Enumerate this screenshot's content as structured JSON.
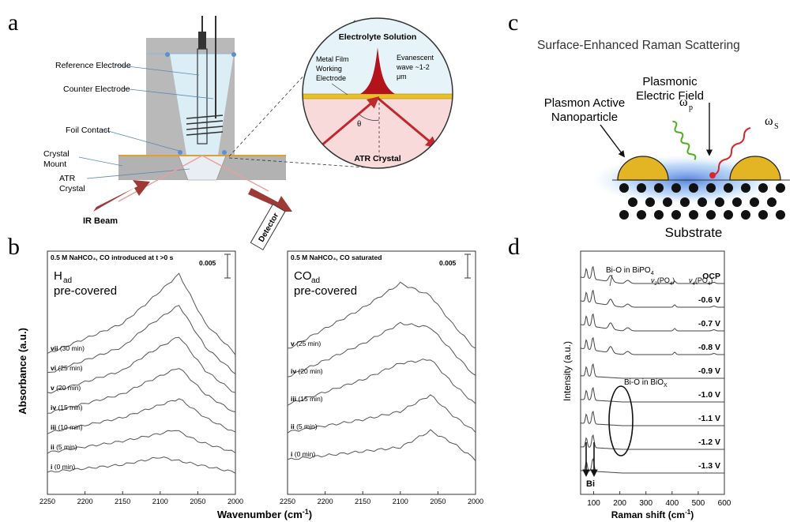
{
  "panels": {
    "a": {
      "letter": "a",
      "labels": {
        "reference_electrode": "Reference Electrode",
        "counter_electrode": "Counter Electrode",
        "foil_contact": "Foil Contact",
        "crystal_mount_1": "Crystal",
        "crystal_mount_2": "Mount",
        "atr_crystal_1": "ATR",
        "atr_crystal_2": "Crystal",
        "ir_beam": "IR Beam",
        "detector": "Detector"
      },
      "inset": {
        "electrolyte_solution": "Electrolyte Solution",
        "metal_film_1": "Metal Film",
        "metal_film_2": "Working",
        "metal_film_3": "Electrode",
        "evanescent_1": "Evanescent",
        "evanescent_2": "wave ~1-2",
        "evanescent_3": "μm",
        "theta": "θ",
        "atr_crystal": "ATR Crystal"
      }
    },
    "b": {
      "letter": "b",
      "ylabel": "Absorbance (a.u.)",
      "xlabel": "Wavenumber (cm",
      "xlabel_sup": "-1",
      "xlabel_close": ")",
      "left": {
        "header": "0.5 M NaHCO₃, CO introduced at t >0 s",
        "scale": "0.005",
        "species_main": "H",
        "species_sub": "ad",
        "precover": "pre-covered",
        "traces": [
          {
            "roman": "vii",
            "time": "(30 min)"
          },
          {
            "roman": "vi",
            "time": "(25 min)"
          },
          {
            "roman": "v",
            "time": "(20 min)"
          },
          {
            "roman": "iv",
            "time": "(15 min)"
          },
          {
            "roman": "iii",
            "time": "(10 min)"
          },
          {
            "roman": "ii",
            "time": "(5 min)"
          },
          {
            "roman": "i",
            "time": "(0 min)"
          }
        ],
        "ticks": [
          "2250",
          "2200",
          "2150",
          "2100",
          "2050",
          "2000"
        ]
      },
      "right": {
        "header": "0.5 M NaHCO₃, CO saturated",
        "scale": "0.005",
        "species_main": "CO",
        "species_sub": "ad",
        "precover": "pre-covered",
        "traces": [
          {
            "roman": "v",
            "time": "(25 min)"
          },
          {
            "roman": "iv",
            "time": "(20 min)"
          },
          {
            "roman": "iii",
            "time": "(15 min)"
          },
          {
            "roman": "ii",
            "time": "(5 min)"
          },
          {
            "roman": "i",
            "time": "(0 min)"
          }
        ],
        "ticks": [
          "2250",
          "2200",
          "2150",
          "2100",
          "2050",
          "2000"
        ]
      }
    },
    "c": {
      "letter": "c",
      "title": "Surface-Enhanced Raman Scattering",
      "plasmonic_1": "Plasmonic",
      "plasmonic_2": "Electric Field",
      "plasmon_1": "Plasmon Active",
      "plasmon_2": "Nanoparticle",
      "omega_p": "ω",
      "omega_p_sub": "p",
      "omega_s": "ω",
      "omega_s_sub": "S",
      "substrate": "Substrate"
    },
    "d": {
      "letter": "d",
      "ylabel": "Intensity (a.u.)",
      "xlabel": "Raman shift (cm",
      "xlabel_sup": "-1",
      "xlabel_close": ")",
      "bio_bipo4": "Bi-O in BiPO",
      "bio_bipo4_sub": "4",
      "v2": "ν",
      "v2_sub": "2",
      "v2_rest": "(PO",
      "v2_sub2": "4",
      "v2_close": ")",
      "v4": "ν",
      "v4_sub": "4",
      "v4_rest": "(PO",
      "v4_sub2": "4",
      "v4_close": ")",
      "bio_biox": "Bi-O in BiO",
      "bio_biox_sub": "X",
      "bi": "Bi",
      "potentials": [
        "OCP",
        "-0.6 V",
        "-0.7 V",
        "-0.8 V",
        "-0.9 V",
        "-1.0 V",
        "-1.1 V",
        "-1.2 V",
        "-1.3 V"
      ],
      "ticks": [
        "100",
        "200",
        "300",
        "400",
        "500",
        "600"
      ]
    }
  },
  "chart_data": [
    {
      "type": "line",
      "xlabel": "Wavenumber (cm-1)",
      "ylabel": "Absorbance (a.u.)",
      "xlim": [
        2250,
        2000
      ],
      "series": [
        {
          "name": "i (0 min)",
          "x": [
            2250,
            2150,
            2100,
            2050,
            2000
          ],
          "values": [
            0.0,
            0.002,
            0.004,
            0.002,
            0.0
          ]
        },
        {
          "name": "ii (5 min)",
          "x": [
            2250,
            2150,
            2100,
            2080,
            2050,
            2000
          ],
          "values": [
            0.0,
            0.003,
            0.005,
            0.006,
            0.003,
            0.0
          ]
        },
        {
          "name": "iii (10 min)",
          "x": [
            2250,
            2150,
            2120,
            2075,
            2040,
            2000
          ],
          "values": [
            0.0,
            0.004,
            0.006,
            0.009,
            0.004,
            0.0
          ]
        },
        {
          "name": "iv (15 min)",
          "x": [
            2250,
            2150,
            2120,
            2075,
            2040,
            2000
          ],
          "values": [
            0.0,
            0.005,
            0.008,
            0.012,
            0.005,
            0.0
          ]
        },
        {
          "name": "v (20 min)",
          "x": [
            2250,
            2150,
            2120,
            2075,
            2040,
            2000
          ],
          "values": [
            0.0,
            0.006,
            0.01,
            0.015,
            0.006,
            0.0
          ]
        },
        {
          "name": "vi (25 min)",
          "x": [
            2250,
            2150,
            2120,
            2075,
            2040,
            2000
          ],
          "values": [
            0.0,
            0.007,
            0.012,
            0.018,
            0.007,
            0.0
          ]
        },
        {
          "name": "vii (30 min)",
          "x": [
            2250,
            2150,
            2120,
            2075,
            2040,
            2000
          ],
          "values": [
            0.0,
            0.008,
            0.013,
            0.021,
            0.008,
            0.0
          ]
        }
      ]
    },
    {
      "type": "line",
      "xlabel": "Wavenumber (cm-1)",
      "xlim": [
        2250,
        2000
      ],
      "series": [
        {
          "name": "i (0 min)",
          "x": [
            2250,
            2150,
            2100,
            2060,
            2030,
            2000
          ],
          "values": [
            0.0,
            0.002,
            0.003,
            0.007,
            0.004,
            0.0
          ]
        },
        {
          "name": "ii (5 min)",
          "x": [
            2250,
            2150,
            2100,
            2060,
            2030,
            2000
          ],
          "values": [
            0.0,
            0.003,
            0.005,
            0.009,
            0.004,
            0.0
          ]
        },
        {
          "name": "iii (15 min)",
          "x": [
            2250,
            2150,
            2100,
            2060,
            2030,
            2000
          ],
          "values": [
            0.0,
            0.006,
            0.01,
            0.011,
            0.005,
            0.0
          ]
        },
        {
          "name": "iv (20 min)",
          "x": [
            2250,
            2150,
            2100,
            2060,
            2030,
            2000
          ],
          "values": [
            0.0,
            0.008,
            0.013,
            0.012,
            0.006,
            0.0
          ]
        },
        {
          "name": "v (25 min)",
          "x": [
            2250,
            2150,
            2100,
            2060,
            2030,
            2000
          ],
          "values": [
            0.0,
            0.01,
            0.016,
            0.013,
            0.006,
            0.0
          ]
        }
      ]
    },
    {
      "type": "line",
      "xlabel": "Raman shift (cm-1)",
      "ylabel": "Intensity (a.u.)",
      "xlim": [
        50,
        600
      ],
      "series": [
        {
          "name": "OCP"
        },
        {
          "name": "-0.6 V"
        },
        {
          "name": "-0.7 V"
        },
        {
          "name": "-0.8 V"
        },
        {
          "name": "-0.9 V"
        },
        {
          "name": "-1.0 V"
        },
        {
          "name": "-1.1 V"
        },
        {
          "name": "-1.2 V"
        },
        {
          "name": "-1.3 V"
        }
      ]
    }
  ]
}
